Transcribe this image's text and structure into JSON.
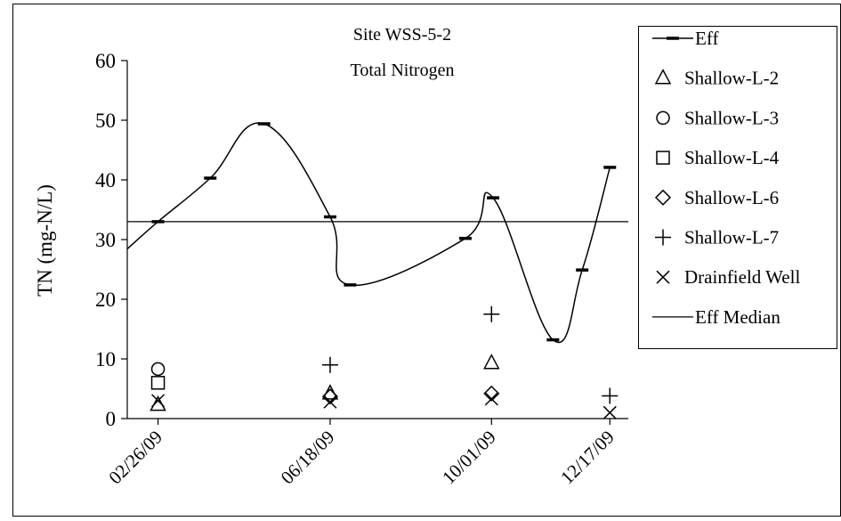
{
  "chart_data": {
    "type": "line",
    "title": [
      "Site WSS-5-2",
      "Total Nitrogen"
    ],
    "xlabel": "",
    "ylabel": "TN (mg-N/L)",
    "ylim": [
      0,
      60
    ],
    "yticks": [
      0,
      10,
      20,
      30,
      40,
      50,
      60
    ],
    "xlim": [
      "2009-02-06",
      "2009-12-29"
    ],
    "xticks": [
      "2009-02-26",
      "2009-06-18",
      "2009-10-01",
      "2009-12-17"
    ],
    "xtick_labels": [
      "02/26/09",
      "06/18/09",
      "10/01/09",
      "12/17/09"
    ],
    "legend_position": "right",
    "series": [
      {
        "name": "Eff",
        "kind": "line-dash",
        "color": "#000000",
        "points": [
          {
            "x": "2009-02-05",
            "y": 28.2
          },
          {
            "x": "2009-02-26",
            "y": 33.0
          },
          {
            "x": "2009-04-01",
            "y": 40.3
          },
          {
            "x": "2009-05-06",
            "y": 49.4
          },
          {
            "x": "2009-06-18",
            "y": 33.8
          },
          {
            "x": "2009-07-01",
            "y": 22.4
          },
          {
            "x": "2009-09-14",
            "y": 30.2
          },
          {
            "x": "2009-10-02",
            "y": 37.0
          },
          {
            "x": "2009-11-10",
            "y": 13.2
          },
          {
            "x": "2009-11-29",
            "y": 24.9
          },
          {
            "x": "2009-12-17",
            "y": 42.1
          }
        ]
      },
      {
        "name": "Shallow-L-2",
        "kind": "triangle",
        "points": [
          {
            "x": "2009-02-26",
            "y": 2.3
          },
          {
            "x": "2009-06-18",
            "y": 4.2
          },
          {
            "x": "2009-10-01",
            "y": 9.3
          }
        ]
      },
      {
        "name": "Shallow-L-3",
        "kind": "circle",
        "points": [
          {
            "x": "2009-02-26",
            "y": 8.3
          }
        ]
      },
      {
        "name": "Shallow-L-4",
        "kind": "square",
        "points": [
          {
            "x": "2009-02-26",
            "y": 6.0
          }
        ]
      },
      {
        "name": "Shallow-L-6",
        "kind": "diamond",
        "points": [
          {
            "x": "2009-06-18",
            "y": 3.7
          },
          {
            "x": "2009-10-01",
            "y": 4.2
          }
        ]
      },
      {
        "name": "Shallow-L-7",
        "kind": "plus",
        "points": [
          {
            "x": "2009-06-18",
            "y": 9.0
          },
          {
            "x": "2009-10-01",
            "y": 17.5
          },
          {
            "x": "2009-12-17",
            "y": 3.8
          }
        ]
      },
      {
        "name": "Drainfield Well",
        "kind": "cross",
        "points": [
          {
            "x": "2009-02-26",
            "y": 3.0
          },
          {
            "x": "2009-06-18",
            "y": 2.8
          },
          {
            "x": "2009-10-01",
            "y": 3.3
          },
          {
            "x": "2009-12-17",
            "y": 1.0
          }
        ]
      },
      {
        "name": "Eff Median",
        "kind": "hline",
        "value": 33.0
      }
    ]
  }
}
